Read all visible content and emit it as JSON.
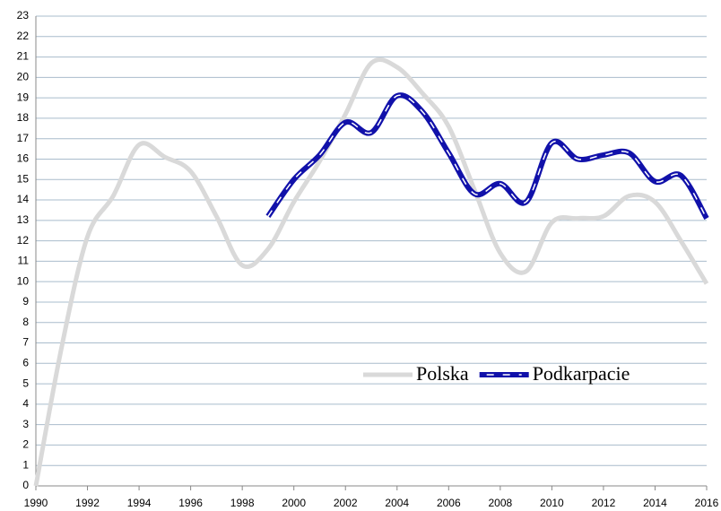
{
  "chart_data": {
    "type": "line",
    "x": [
      1990,
      1991,
      1992,
      1993,
      1994,
      1995,
      1996,
      1997,
      1998,
      1999,
      2000,
      2001,
      2002,
      2003,
      2004,
      2005,
      2006,
      2007,
      2008,
      2009,
      2010,
      2011,
      2012,
      2013,
      2014,
      2015,
      2016
    ],
    "series": [
      {
        "name": "Polska",
        "color": "#d9d9d9",
        "values": [
          0,
          6.8,
          12.2,
          14.2,
          16.7,
          16.1,
          15.4,
          13.2,
          10.8,
          11.6,
          13.9,
          15.9,
          18.2,
          20.7,
          20.5,
          19.2,
          17.6,
          14.5,
          11.4,
          10.5,
          12.9,
          13.1,
          13.2,
          14.2,
          13.9,
          12.0,
          9.9
        ]
      },
      {
        "name": "Podkarpacie",
        "color": "#1111aa",
        "values": [
          null,
          null,
          null,
          null,
          null,
          null,
          null,
          null,
          null,
          13.2,
          15.0,
          16.2,
          17.8,
          17.3,
          19.1,
          18.3,
          16.3,
          14.3,
          14.8,
          13.9,
          16.8,
          16.0,
          16.2,
          16.3,
          14.9,
          15.2,
          13.1
        ]
      }
    ],
    "xlim": [
      1990,
      2016
    ],
    "xticks": [
      1990,
      1992,
      1994,
      1996,
      1998,
      2000,
      2002,
      2004,
      2006,
      2008,
      2010,
      2012,
      2014,
      2016
    ],
    "ylim": [
      0,
      23
    ],
    "yticks": [
      0,
      1,
      2,
      3,
      4,
      5,
      6,
      7,
      8,
      9,
      10,
      11,
      12,
      13,
      14,
      15,
      16,
      17,
      18,
      19,
      20,
      21,
      22,
      23
    ],
    "grid": true,
    "legend": "lower right"
  }
}
